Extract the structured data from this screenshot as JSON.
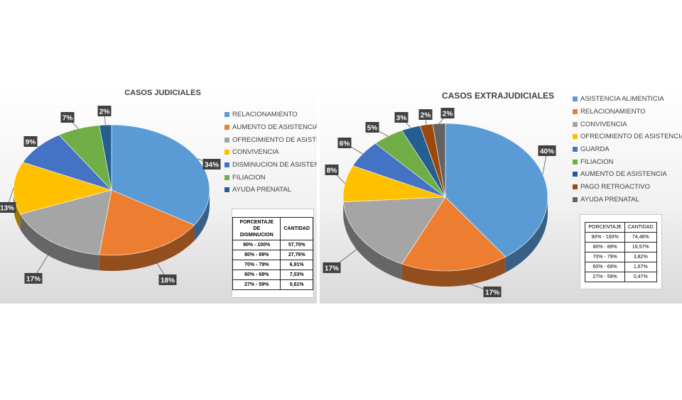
{
  "chart_data": [
    {
      "type": "pie",
      "title": "CASOS JUDICIALES",
      "categories": [
        "RELACIONAMIENTO",
        "AUMENTO DE ASISTENCIA",
        "OFRECIMIENTO DE ASISTENCIA",
        "CONVIVENCIA",
        "DISMINUCION DE ASISTENCIA",
        "FILIACION",
        "AYUDA PRENATAL"
      ],
      "values": [
        34,
        18,
        17,
        13,
        9,
        7,
        2
      ],
      "labels": [
        "34%",
        "18%",
        "17%",
        "13%",
        "9%",
        "7%",
        "2%"
      ],
      "colors": [
        "#5b9bd5",
        "#ed7d31",
        "#a5a5a5",
        "#ffc000",
        "#4472c4",
        "#70ad47",
        "#255e91"
      ],
      "legend_position": "right",
      "table": {
        "headers": [
          "PORCENTAJE DE DISMINUCION",
          "CANTIDAD"
        ],
        "rows": [
          [
            "90% - 100%",
            "57,70%"
          ],
          [
            "80% - 89%",
            "27,76%"
          ],
          [
            "70% - 79%",
            "6,91%"
          ],
          [
            "60% - 69%",
            "7,03%"
          ],
          [
            "27% - 59%",
            "0,61%"
          ]
        ]
      }
    },
    {
      "type": "pie",
      "title": "CASOS EXTRAJUDICIALES",
      "categories": [
        "ASISTENCIA ALIMENTICIA",
        "RELACIONAMIENTO",
        "CONVIVENCIA",
        "OFRECIMIENTO DE ASISTENCIA",
        "GUARDA",
        "FILIACION",
        "AUMENTO DE ASISTENCIA",
        "PAGO RETROACTIVO",
        "AYUDA PRENATAL"
      ],
      "values": [
        40,
        17,
        17,
        8,
        6,
        5,
        3,
        2,
        2
      ],
      "labels": [
        "40%",
        "17%",
        "17%",
        "8%",
        "6%",
        "5%",
        "3%",
        "2%",
        "2%"
      ],
      "colors": [
        "#5b9bd5",
        "#ed7d31",
        "#a5a5a5",
        "#ffc000",
        "#4472c4",
        "#70ad47",
        "#255e91",
        "#9e480e",
        "#636363"
      ],
      "legend_position": "right",
      "table": {
        "headers": [
          "PORCENTAJE",
          "CANTIDAD"
        ],
        "rows": [
          [
            "90% - 100%",
            "74,46%"
          ],
          [
            "80% - 89%",
            "19,57%"
          ],
          [
            "70% - 79%",
            "3,82%"
          ],
          [
            "60% - 69%",
            "1,67%"
          ],
          [
            "27% - 59%",
            "0,47%"
          ]
        ]
      }
    }
  ]
}
